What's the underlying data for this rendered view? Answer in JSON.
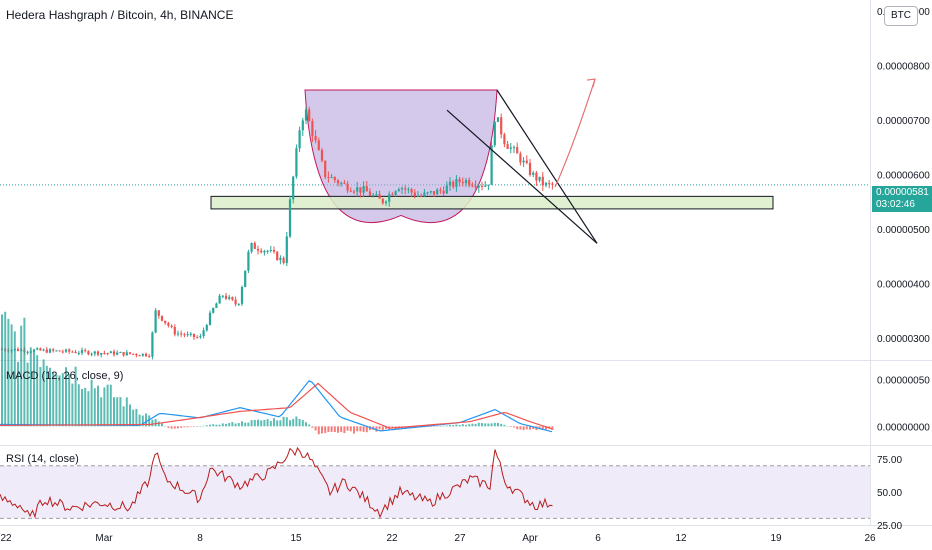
{
  "header": {
    "title": "Hedera Hashgraph / Bitcoin, 4h, BINANCE",
    "currency_badge": "BTC"
  },
  "last_price": {
    "value": "0.00000581",
    "countdown": "03:02:46",
    "color": "#26a69a"
  },
  "indicators": {
    "macd_label": "MACD (12, 26, close, 9)",
    "rsi_label": "RSI (14, close)"
  },
  "colors": {
    "up": "#26a69a",
    "down": "#ef5350",
    "macd_line": "#2196f3",
    "signal_line": "#ef5350",
    "rsi_line": "#b71c1c",
    "rsi_band": "#7e57c2",
    "cup_fill": "#b39ddb",
    "zone_fill": "#dcedc8"
  },
  "chart_data": [
    {
      "type": "candlestick",
      "title": "Hedera Hashgraph / Bitcoin, 4h, BINANCE",
      "x_ticks": [
        "22",
        "Mar",
        "8",
        "15",
        "22",
        "27",
        "Apr",
        "6",
        "12",
        "19",
        "26"
      ],
      "y_ticks": [
        "0.00000900",
        "0.00000800",
        "0.00000700",
        "0.00000600",
        "0.00000500",
        "0.00000400",
        "0.00000300"
      ],
      "ylim": [
        2.6e-06,
        9.2e-06
      ],
      "price_path": [
        [
          0,
          2.8e-06
        ],
        [
          150,
          2.7e-06
        ],
        [
          155,
          3.5e-06
        ],
        [
          175,
          3.1e-06
        ],
        [
          200,
          3e-06
        ],
        [
          212,
          3.5e-06
        ],
        [
          222,
          3.8e-06
        ],
        [
          238,
          3.6e-06
        ],
        [
          250,
          4.7e-06
        ],
        [
          268,
          4.6e-06
        ],
        [
          284,
          4.4e-06
        ],
        [
          290,
          5.5e-06
        ],
        [
          300,
          6.9e-06
        ],
        [
          305,
          7.2e-06
        ],
        [
          312,
          6.8e-06
        ],
        [
          325,
          6e-06
        ],
        [
          345,
          5.8e-06
        ],
        [
          365,
          5.7e-06
        ],
        [
          382,
          5.5e-06
        ],
        [
          398,
          5.8e-06
        ],
        [
          420,
          5.6e-06
        ],
        [
          440,
          5.7e-06
        ],
        [
          462,
          5.9e-06
        ],
        [
          488,
          5.8e-06
        ],
        [
          495,
          7.1e-06
        ],
        [
          505,
          6.6e-06
        ],
        [
          520,
          6.3e-06
        ],
        [
          532,
          6e-06
        ],
        [
          545,
          5.8e-06
        ],
        [
          553,
          5.8e-06
        ]
      ],
      "last_value": 5.81e-06,
      "support_zone": [
        5.37e-06,
        5.6e-06
      ],
      "cup_top": 7.55e-06,
      "cup_bottom": 5.25e-06,
      "wedge_upper": [
        [
          497,
          7.55e-06
        ],
        [
          597,
          4.74e-06
        ]
      ],
      "wedge_lower": [
        [
          447,
          7.18e-06
        ],
        [
          597,
          4.74e-06
        ]
      ],
      "projection_arrow": [
        [
          555,
          5.77e-06
        ],
        [
          595,
          7.75e-06
        ]
      ],
      "grid": false
    },
    {
      "type": "line",
      "title": "MACD (12, 26, close, 9)",
      "y_ticks": [
        "0.00000050",
        "0.00000000"
      ],
      "ylim": [
        -2e-07,
        7e-07
      ],
      "series": [
        {
          "name": "MACD",
          "values": [
            [
              0,
              2e-08
            ],
            [
              140,
              1e-08
            ],
            [
              160,
              1.4e-07
            ],
            [
              200,
              9e-08
            ],
            [
              240,
              2e-07
            ],
            [
              280,
              1e-07
            ],
            [
              310,
              5e-07
            ],
            [
              340,
              1e-07
            ],
            [
              380,
              -5e-08
            ],
            [
              460,
              4e-08
            ],
            [
              495,
              1.8e-07
            ],
            [
              520,
              3e-08
            ],
            [
              553,
              -6e-08
            ]
          ]
        },
        {
          "name": "Signal",
          "values": [
            [
              0,
              1e-08
            ],
            [
              150,
              2e-08
            ],
            [
              190,
              8e-08
            ],
            [
              240,
              1.6e-07
            ],
            [
              290,
              2e-07
            ],
            [
              318,
              4.6e-07
            ],
            [
              350,
              1.5e-07
            ],
            [
              390,
              -2e-08
            ],
            [
              470,
              5e-08
            ],
            [
              505,
              1.5e-07
            ],
            [
              530,
              5e-08
            ],
            [
              553,
              -3e-08
            ]
          ]
        }
      ],
      "histogram": [
        [
          150,
          1.2e-07
        ],
        [
          170,
          -3e-08
        ],
        [
          230,
          4e-08
        ],
        [
          300,
          1.2e-07
        ],
        [
          320,
          -1e-07
        ],
        [
          345,
          -8e-08
        ],
        [
          390,
          -4e-08
        ],
        [
          470,
          3e-08
        ],
        [
          495,
          5e-08
        ],
        [
          520,
          -4e-08
        ],
        [
          545,
          -4e-08
        ]
      ]
    },
    {
      "type": "line",
      "title": "RSI (14, close)",
      "y_ticks": [
        "75.00",
        "50.00",
        "25.00"
      ],
      "ylim": [
        25,
        85
      ],
      "band": [
        30,
        70
      ],
      "values": [
        [
          0,
          45
        ],
        [
          20,
          40
        ],
        [
          30,
          30
        ],
        [
          45,
          45
        ],
        [
          70,
          38
        ],
        [
          100,
          42
        ],
        [
          130,
          38
        ],
        [
          150,
          60
        ],
        [
          155,
          82
        ],
        [
          165,
          60
        ],
        [
          200,
          45
        ],
        [
          210,
          68
        ],
        [
          240,
          55
        ],
        [
          270,
          65
        ],
        [
          290,
          80
        ],
        [
          300,
          82
        ],
        [
          310,
          75
        ],
        [
          330,
          50
        ],
        [
          345,
          58
        ],
        [
          380,
          35
        ],
        [
          400,
          50
        ],
        [
          430,
          42
        ],
        [
          460,
          55
        ],
        [
          470,
          60
        ],
        [
          490,
          55
        ],
        [
          495,
          82
        ],
        [
          505,
          58
        ],
        [
          520,
          48
        ],
        [
          535,
          40
        ],
        [
          553,
          42
        ]
      ]
    }
  ]
}
